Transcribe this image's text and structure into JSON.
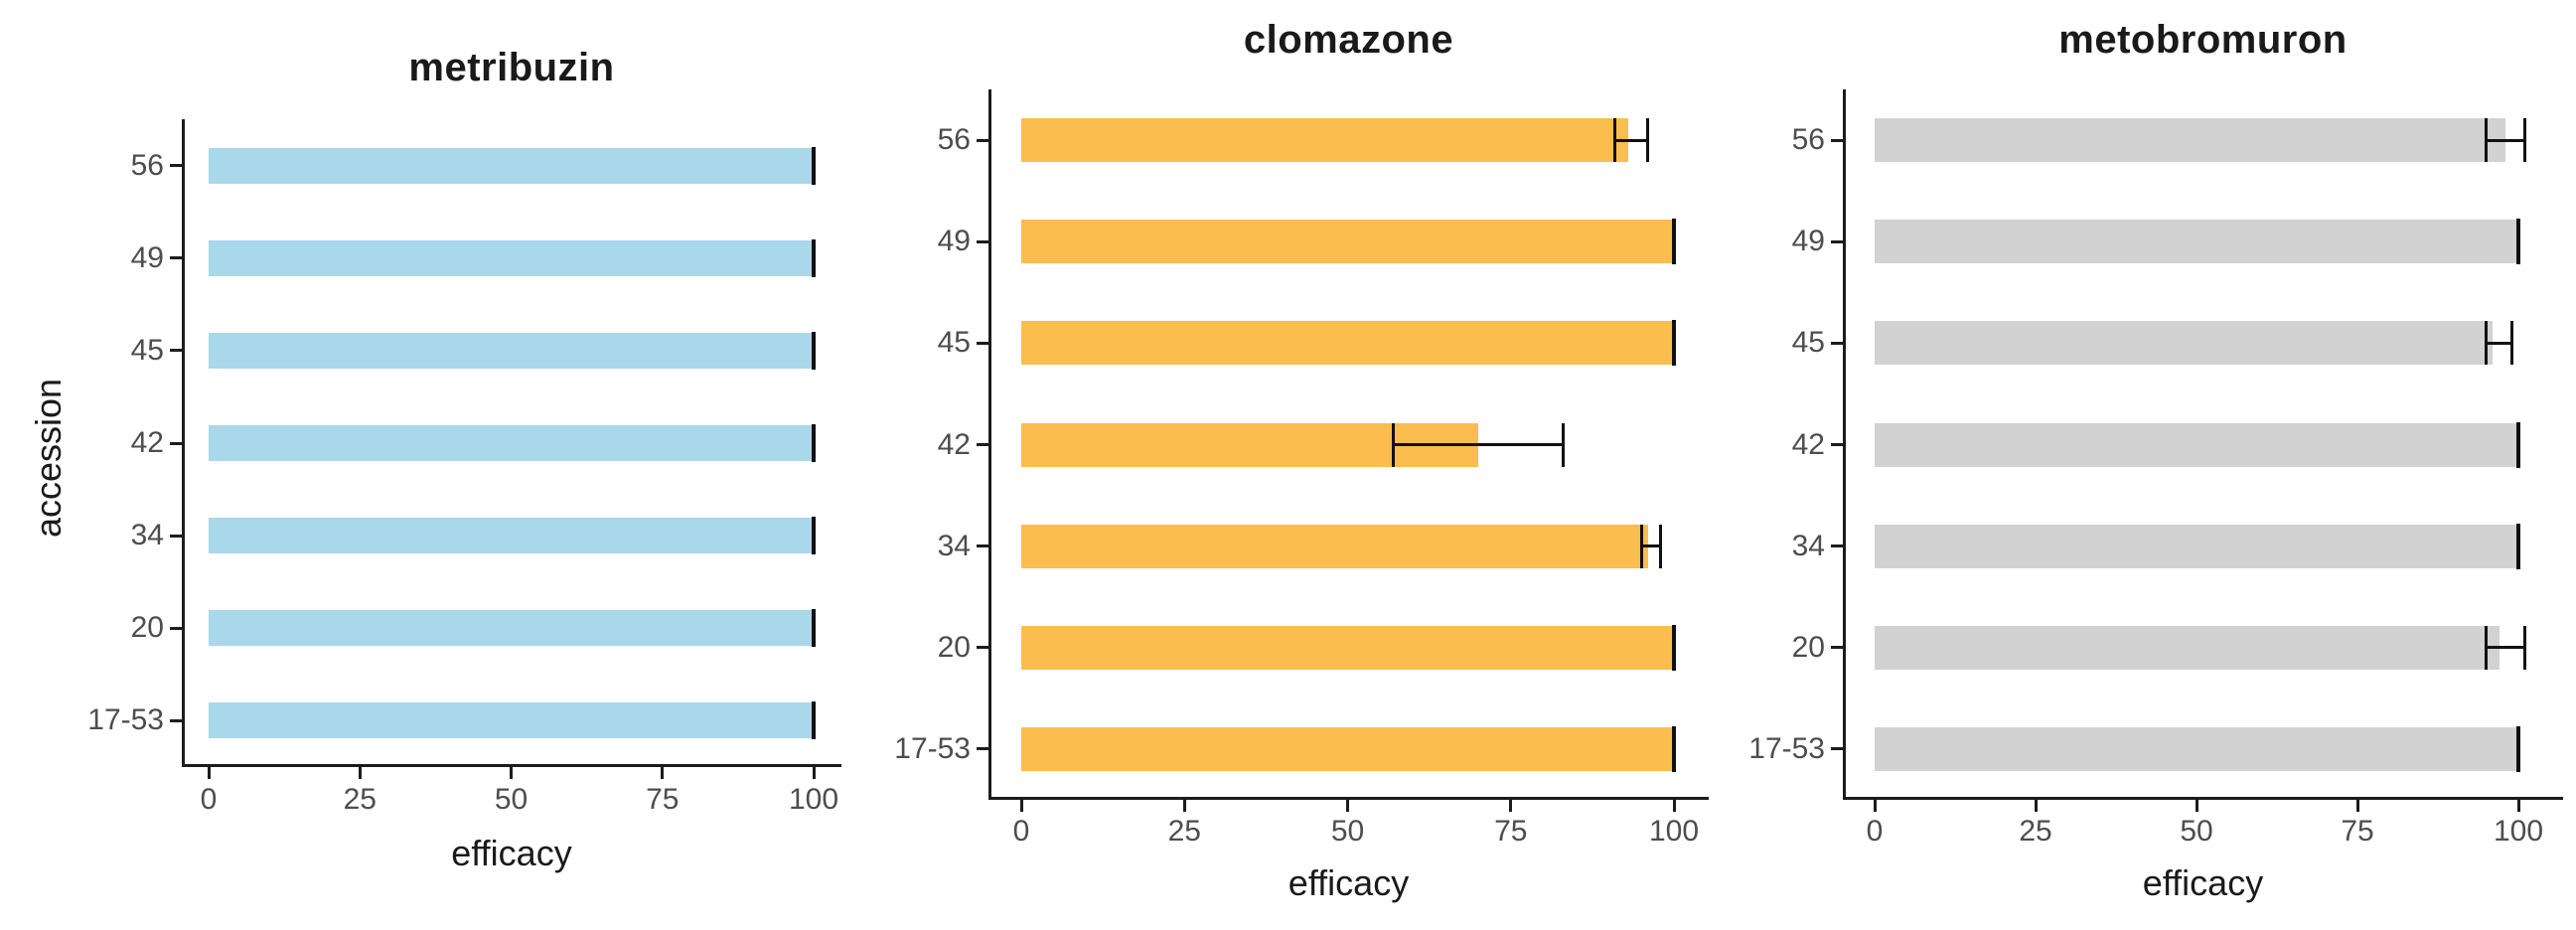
{
  "figure": {
    "x_axis_label": "efficacy",
    "y_axis_label": "accession",
    "x_tick_labels": [
      "0",
      "25",
      "50",
      "75",
      "100"
    ],
    "categories_top_to_bottom": [
      "56",
      "49",
      "45",
      "42",
      "34",
      "20",
      "17-53"
    ]
  },
  "styles": {
    "background": "#ffffff",
    "axis_color": "#1c1c1c",
    "error_bar_color": "#111111",
    "tick_label_color": "#4d4d4d",
    "title_color": "#1a1a1a",
    "metribuzin_bar_color": "#a8d8ea",
    "clomazone_bar_color": "#fbbd4d",
    "metobromuron_bar_color": "#d2d2d2"
  },
  "chart_data": [
    {
      "type": "bar",
      "orientation": "horizontal",
      "title": "metribuzin",
      "xlabel": "efficacy",
      "ylabel": "accession",
      "bar_color": "#a8d8ea",
      "xlim": [
        0,
        104
      ],
      "x_ticks": [
        0,
        25,
        50,
        75,
        100
      ],
      "categories": [
        "56",
        "49",
        "45",
        "42",
        "34",
        "20",
        "17-53"
      ],
      "values": [
        100,
        100,
        100,
        100,
        100,
        100,
        100
      ],
      "error_low": [
        100,
        100,
        100,
        100,
        100,
        100,
        100
      ],
      "error_high": [
        100,
        100,
        100,
        100,
        100,
        100,
        100
      ],
      "grid": false,
      "legend": false
    },
    {
      "type": "bar",
      "orientation": "horizontal",
      "title": "clomazone",
      "xlabel": "efficacy",
      "ylabel": "",
      "bar_color": "#fbbd4d",
      "xlim": [
        0,
        104
      ],
      "x_ticks": [
        0,
        25,
        50,
        75,
        100
      ],
      "categories": [
        "56",
        "49",
        "45",
        "42",
        "34",
        "20",
        "17-53"
      ],
      "values": [
        93,
        100,
        100,
        70,
        96,
        100,
        100
      ],
      "error_low": [
        91,
        100,
        100,
        57,
        95,
        100,
        100
      ],
      "error_high": [
        96,
        100,
        100,
        83,
        98,
        100,
        100
      ],
      "grid": false,
      "legend": false
    },
    {
      "type": "bar",
      "orientation": "horizontal",
      "title": "metobromuron",
      "xlabel": "efficacy",
      "ylabel": "",
      "bar_color": "#d2d2d2",
      "xlim": [
        0,
        104
      ],
      "x_ticks": [
        0,
        25,
        50,
        75,
        100
      ],
      "categories": [
        "56",
        "49",
        "45",
        "42",
        "34",
        "20",
        "17-53"
      ],
      "values": [
        98,
        100,
        96,
        100,
        100,
        97,
        100
      ],
      "error_low": [
        95,
        100,
        95,
        100,
        100,
        95,
        100
      ],
      "error_high": [
        101,
        100,
        99,
        100,
        100,
        101,
        100
      ],
      "grid": false,
      "legend": false
    }
  ]
}
